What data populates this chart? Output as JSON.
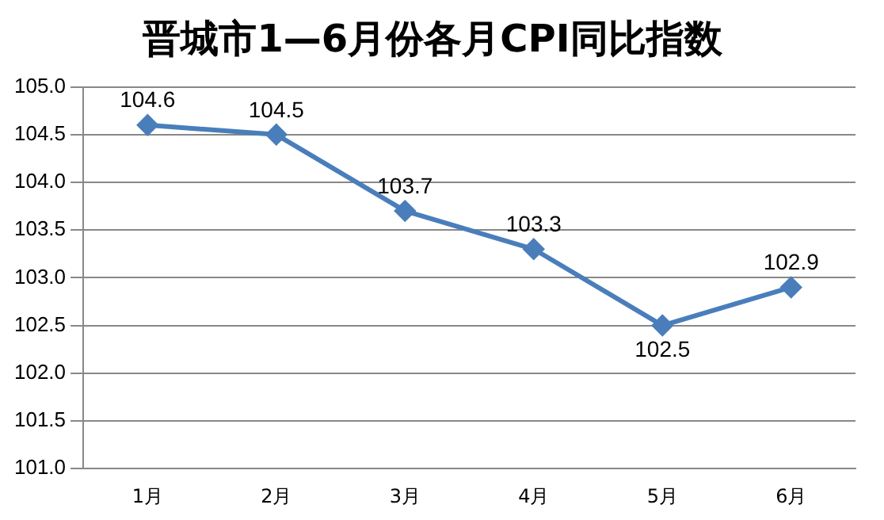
{
  "chart_data": {
    "type": "line",
    "title": "晋城市1—6月份各月CPI同比指数",
    "categories": [
      "1月",
      "2月",
      "3月",
      "4月",
      "5月",
      "6月"
    ],
    "series": [
      {
        "color": "#4a7ebb",
        "values": [
          104.6,
          104.5,
          103.7,
          103.3,
          102.5,
          102.9
        ]
      }
    ],
    "ylim": [
      101,
      105
    ],
    "yticks": [
      {
        "value": 101,
        "label": "101.0"
      },
      {
        "value": 101.5,
        "label": "101.5"
      },
      {
        "value": 102,
        "label": "102.0"
      },
      {
        "value": 102.5,
        "label": "102.5"
      },
      {
        "value": 103,
        "label": "103.0"
      },
      {
        "value": 103.5,
        "label": "103.5"
      },
      {
        "value": 104,
        "label": "104.0"
      },
      {
        "value": 104.5,
        "label": "104.5"
      },
      {
        "value": 105,
        "label": "105.0"
      }
    ],
    "grid": "y",
    "legend": false,
    "marker": "diamond",
    "line_style": "solid",
    "data_labels": true
  }
}
